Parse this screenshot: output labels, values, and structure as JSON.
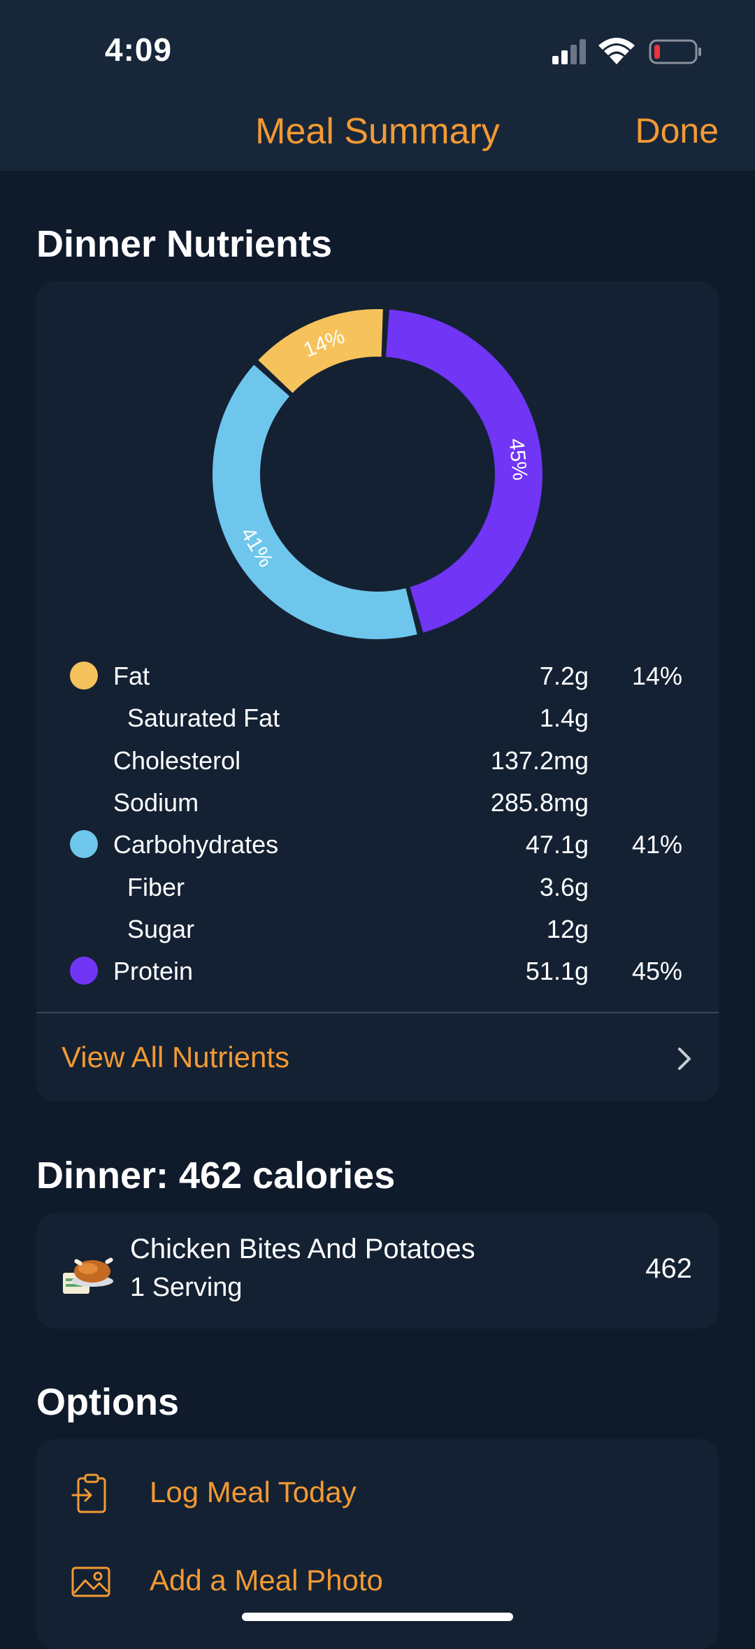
{
  "status_bar": {
    "time": "4:09"
  },
  "nav": {
    "title": "Meal Summary",
    "done_label": "Done"
  },
  "nutrients_section": {
    "title": "Dinner Nutrients",
    "rows": [
      {
        "label": "Fat",
        "amount": "7.2g",
        "percent": "14%",
        "dot": "#f6c25b",
        "sub": false
      },
      {
        "label": "Saturated Fat",
        "amount": "1.4g",
        "percent": "",
        "dot": "",
        "sub": true
      },
      {
        "label": "Cholesterol",
        "amount": "137.2mg",
        "percent": "",
        "dot": "",
        "sub": false
      },
      {
        "label": "Sodium",
        "amount": "285.8mg",
        "percent": "",
        "dot": "",
        "sub": false
      },
      {
        "label": "Carbohydrates",
        "amount": "47.1g",
        "percent": "41%",
        "dot": "#6ec6ec",
        "sub": false
      },
      {
        "label": "Fiber",
        "amount": "3.6g",
        "percent": "",
        "dot": "",
        "sub": true
      },
      {
        "label": "Sugar",
        "amount": "12g",
        "percent": "",
        "dot": "",
        "sub": true
      },
      {
        "label": "Protein",
        "amount": "51.1g",
        "percent": "45%",
        "dot": "#7035f5",
        "sub": false
      }
    ],
    "view_all_label": "View All Nutrients"
  },
  "chart_data": {
    "type": "pie",
    "categories": [
      "Protein",
      "Carbohydrates",
      "Fat"
    ],
    "values": [
      45,
      41,
      14
    ],
    "labels": [
      "45%",
      "41%",
      "14%"
    ],
    "colors": [
      "#7035f5",
      "#6ec6ec",
      "#f6c25b"
    ]
  },
  "dinner_section": {
    "title": "Dinner: 462 calories",
    "food": {
      "name": "Chicken Bites And Potatoes",
      "serving": "1 Serving",
      "calories": "462",
      "icon": "roast-chicken-icon"
    }
  },
  "options_section": {
    "title": "Options",
    "items": [
      {
        "label": "Log Meal Today",
        "icon": "clipboard-log-icon"
      },
      {
        "label": "Add a Meal Photo",
        "icon": "photo-icon"
      }
    ]
  },
  "colors": {
    "accent": "#f29a33",
    "background": "#0f1a2b",
    "card": "#142133",
    "header": "#18263a"
  }
}
